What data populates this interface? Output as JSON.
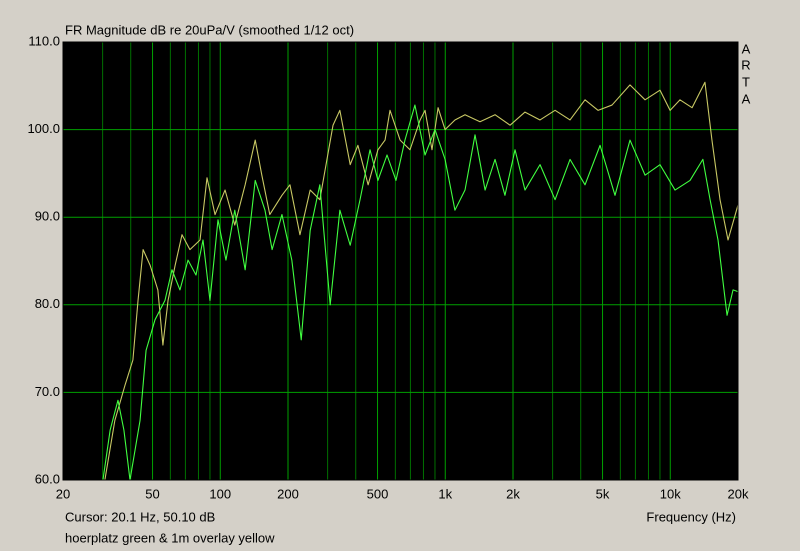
{
  "chart_data": {
    "type": "line",
    "title": "FR Magnitude dB re 20uPa/V (smoothed 1/12 oct)",
    "side_label": [
      "A",
      "R",
      "T",
      "A"
    ],
    "x_label": "Frequency (Hz)",
    "cursor_text": "Cursor: 20.1 Hz, 50.10 dB",
    "legend_text": "hoerplatz green & 1m overlay yellow",
    "x_scale": "log",
    "xlim": [
      20,
      20000
    ],
    "ylim": [
      60,
      110
    ],
    "xticks": [
      20,
      50,
      100,
      200,
      500,
      {
        "value": 1000,
        "label": "1k"
      },
      {
        "value": 2000,
        "label": "2k"
      },
      {
        "value": 5000,
        "label": "5k"
      },
      {
        "value": 10000,
        "label": "10k"
      },
      {
        "value": 20000,
        "label": "20k"
      }
    ],
    "x_minor_grid": [
      30,
      40,
      60,
      70,
      80,
      90,
      300,
      400,
      600,
      700,
      800,
      900,
      3000,
      4000,
      6000,
      7000,
      8000,
      9000
    ],
    "yticks": [
      {
        "value": 60,
        "label": "60.0"
      },
      {
        "value": 70,
        "label": "70.0"
      },
      {
        "value": 80,
        "label": "80.0"
      },
      {
        "value": 90,
        "label": "90.0"
      },
      {
        "value": 100,
        "label": "100.0"
      },
      {
        "value": 110,
        "label": "110.0"
      }
    ],
    "grid": true,
    "grid_color": "#00a000",
    "plot_background": "#000000",
    "series": [
      {
        "color": "#c8c864",
        "x": [
          30.7,
          34,
          37.7,
          40.9,
          43.1,
          45.4,
          48.8,
          52.8,
          55.6,
          58.6,
          63,
          67.6,
          73.3,
          81.3,
          87.3,
          94.8,
          105,
          116,
          129,
          143,
          153,
          166,
          188,
          204,
          226,
          251,
          277,
          317,
          340,
          378,
          409,
          454,
          502,
          540,
          568,
          630,
          697,
          773,
          813,
          873,
          929,
          998,
          1104,
          1224,
          1427,
          1664,
          1941,
          2261,
          2637,
          3076,
          3585,
          4180,
          4774,
          5508,
          6622,
          7725,
          9000,
          9983,
          11040,
          12500,
          14260,
          15320,
          16640,
          18060,
          20000
        ],
        "values": [
          60,
          66.8,
          70.8,
          73.7,
          80.5,
          86.3,
          84.5,
          81.7,
          75.4,
          80.5,
          84.5,
          88,
          86.3,
          87.4,
          94.5,
          90.3,
          93.1,
          89.1,
          93.7,
          98.8,
          94.8,
          90.3,
          92.5,
          93.7,
          88,
          93.1,
          92,
          100.5,
          102.2,
          96,
          98.2,
          93.7,
          97.7,
          98.8,
          102.2,
          98.8,
          97.7,
          101.1,
          102.2,
          97.7,
          102.5,
          100,
          101.1,
          101.7,
          100.9,
          101.7,
          100.5,
          102,
          101.1,
          102.2,
          101.1,
          103.4,
          102.2,
          102.8,
          105.1,
          103.4,
          104.5,
          102.2,
          103.4,
          102.5,
          105.4,
          98.8,
          92,
          87.4,
          91.4
        ]
      },
      {
        "color": "#40ff40",
        "x": [
          30.1,
          32.4,
          35.1,
          37.3,
          39.7,
          44,
          46.8,
          51.3,
          56.8,
          61,
          66.2,
          71.9,
          78,
          83.8,
          90,
          97.7,
          106,
          116,
          129,
          143,
          158,
          170,
          188,
          208,
          229,
          251,
          277,
          308,
          340,
          378,
          418,
          463,
          502,
          551,
          604,
          662,
          733,
          813,
          900,
          998,
          1104,
          1224,
          1356,
          1503,
          1664,
          1842,
          2042,
          2261,
          2637,
          3076,
          3585,
          4180,
          4875,
          5680,
          6622,
          7725,
          9000,
          10500,
          12240,
          13960,
          15030,
          16300,
          17880,
          19010,
          20000
        ],
        "values": [
          60,
          65.7,
          69.1,
          65.7,
          60,
          66.8,
          74.8,
          78.3,
          80.5,
          84,
          81.7,
          85.1,
          83.4,
          87.4,
          80.5,
          89.7,
          85.1,
          90.8,
          84,
          94.2,
          90.8,
          86.3,
          90.3,
          85.1,
          76,
          88.5,
          93.7,
          80,
          90.8,
          86.8,
          92,
          97.7,
          94.2,
          97.1,
          94.2,
          98.8,
          102.8,
          97.1,
          100,
          96.6,
          90.8,
          93.1,
          99.4,
          93.1,
          96.6,
          92.5,
          97.7,
          93.1,
          96,
          92,
          96.6,
          93.7,
          98.2,
          92.5,
          98.8,
          94.8,
          96,
          93.1,
          94.2,
          96.6,
          92,
          87.4,
          78.8,
          81.7,
          81.5
        ]
      }
    ]
  }
}
